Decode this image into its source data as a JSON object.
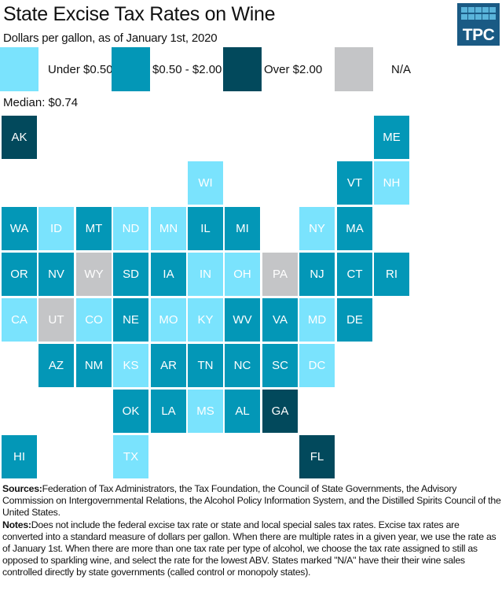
{
  "title": "State Excise Tax Rates on Wine",
  "subtitle": "Dollars per gallon, as of January 1st, 2020",
  "logo": {
    "text": "TPC",
    "icon": "tpc-logo-icon"
  },
  "median_label": "Median: $0.74",
  "chart_data": {
    "type": "heatmap",
    "subtype": "tile-grid-map",
    "title": "State Excise Tax Rates on Wine",
    "subtitle": "Dollars per gallon, as of January 1st, 2020",
    "median": "$0.74",
    "legend_placement": "top",
    "categories": [
      {
        "key": "low",
        "label": "Under $0.50",
        "color": "#7ae3fd"
      },
      {
        "key": "mid",
        "label": "$0.50 - $2.00",
        "color": "#0397b7"
      },
      {
        "key": "high",
        "label": "Over $2.00",
        "color": "#02495c"
      },
      {
        "key": "na",
        "label": "N/A",
        "color": "#c4c5c7"
      }
    ],
    "states": [
      {
        "abbr": "AK",
        "row": 0,
        "col": 0,
        "category": "high"
      },
      {
        "abbr": "ME",
        "row": 0,
        "col": 10,
        "category": "mid"
      },
      {
        "abbr": "WI",
        "row": 1,
        "col": 5,
        "category": "low"
      },
      {
        "abbr": "VT",
        "row": 1,
        "col": 9,
        "category": "mid"
      },
      {
        "abbr": "NH",
        "row": 1,
        "col": 10,
        "category": "low"
      },
      {
        "abbr": "WA",
        "row": 2,
        "col": 0,
        "category": "mid"
      },
      {
        "abbr": "ID",
        "row": 2,
        "col": 1,
        "category": "low"
      },
      {
        "abbr": "MT",
        "row": 2,
        "col": 2,
        "category": "mid"
      },
      {
        "abbr": "ND",
        "row": 2,
        "col": 3,
        "category": "low"
      },
      {
        "abbr": "MN",
        "row": 2,
        "col": 4,
        "category": "low"
      },
      {
        "abbr": "IL",
        "row": 2,
        "col": 5,
        "category": "mid"
      },
      {
        "abbr": "MI",
        "row": 2,
        "col": 6,
        "category": "mid"
      },
      {
        "abbr": "NY",
        "row": 2,
        "col": 8,
        "category": "low"
      },
      {
        "abbr": "MA",
        "row": 2,
        "col": 9,
        "category": "mid"
      },
      {
        "abbr": "OR",
        "row": 3,
        "col": 0,
        "category": "mid"
      },
      {
        "abbr": "NV",
        "row": 3,
        "col": 1,
        "category": "mid"
      },
      {
        "abbr": "WY",
        "row": 3,
        "col": 2,
        "category": "na"
      },
      {
        "abbr": "SD",
        "row": 3,
        "col": 3,
        "category": "mid"
      },
      {
        "abbr": "IA",
        "row": 3,
        "col": 4,
        "category": "mid"
      },
      {
        "abbr": "IN",
        "row": 3,
        "col": 5,
        "category": "low"
      },
      {
        "abbr": "OH",
        "row": 3,
        "col": 6,
        "category": "low"
      },
      {
        "abbr": "PA",
        "row": 3,
        "col": 7,
        "category": "na"
      },
      {
        "abbr": "NJ",
        "row": 3,
        "col": 8,
        "category": "mid"
      },
      {
        "abbr": "CT",
        "row": 3,
        "col": 9,
        "category": "mid"
      },
      {
        "abbr": "RI",
        "row": 3,
        "col": 10,
        "category": "mid"
      },
      {
        "abbr": "CA",
        "row": 4,
        "col": 0,
        "category": "low"
      },
      {
        "abbr": "UT",
        "row": 4,
        "col": 1,
        "category": "na"
      },
      {
        "abbr": "CO",
        "row": 4,
        "col": 2,
        "category": "low"
      },
      {
        "abbr": "NE",
        "row": 4,
        "col": 3,
        "category": "mid"
      },
      {
        "abbr": "MO",
        "row": 4,
        "col": 4,
        "category": "low"
      },
      {
        "abbr": "KY",
        "row": 4,
        "col": 5,
        "category": "low"
      },
      {
        "abbr": "WV",
        "row": 4,
        "col": 6,
        "category": "mid"
      },
      {
        "abbr": "VA",
        "row": 4,
        "col": 7,
        "category": "mid"
      },
      {
        "abbr": "MD",
        "row": 4,
        "col": 8,
        "category": "low"
      },
      {
        "abbr": "DE",
        "row": 4,
        "col": 9,
        "category": "mid"
      },
      {
        "abbr": "AZ",
        "row": 5,
        "col": 1,
        "category": "mid"
      },
      {
        "abbr": "NM",
        "row": 5,
        "col": 2,
        "category": "mid"
      },
      {
        "abbr": "KS",
        "row": 5,
        "col": 3,
        "category": "low"
      },
      {
        "abbr": "AR",
        "row": 5,
        "col": 4,
        "category": "mid"
      },
      {
        "abbr": "TN",
        "row": 5,
        "col": 5,
        "category": "mid"
      },
      {
        "abbr": "NC",
        "row": 5,
        "col": 6,
        "category": "mid"
      },
      {
        "abbr": "SC",
        "row": 5,
        "col": 7,
        "category": "mid"
      },
      {
        "abbr": "DC",
        "row": 5,
        "col": 8,
        "category": "low"
      },
      {
        "abbr": "OK",
        "row": 6,
        "col": 3,
        "category": "mid"
      },
      {
        "abbr": "LA",
        "row": 6,
        "col": 4,
        "category": "mid"
      },
      {
        "abbr": "MS",
        "row": 6,
        "col": 5,
        "category": "low"
      },
      {
        "abbr": "AL",
        "row": 6,
        "col": 6,
        "category": "mid"
      },
      {
        "abbr": "GA",
        "row": 6,
        "col": 7,
        "category": "high"
      },
      {
        "abbr": "HI",
        "row": 7,
        "col": 0,
        "category": "mid"
      },
      {
        "abbr": "TX",
        "row": 7,
        "col": 3,
        "category": "low"
      },
      {
        "abbr": "FL",
        "row": 7,
        "col": 8,
        "category": "high"
      }
    ]
  },
  "footer": {
    "sources_label": "Sources:",
    "sources_text": "Federation of Tax Administrators, the Tax Foundation,  the Council of State Governments, the Advisory Commission on Intergovernmental Relations, the Alcohol Policy Information System, and the Distilled Spirits Council of the United States.",
    "notes_label": "Notes:",
    "notes_text": "Does not include the federal excise tax rate or state and local special sales tax rates. Excise tax rates are converted into a standard measure of dollars  per gallon. When there are multiple rates in a given year, we use the rate as of January 1st. When there are more than one tax rate per type of alcohol, we choose the tax rate assigned to still as opposed to sparkling wine, and select the rate for the lowest ABV. States marked \"N/A\" have their their wine sales controlled directly by state governments (called control or monopoly states)."
  }
}
